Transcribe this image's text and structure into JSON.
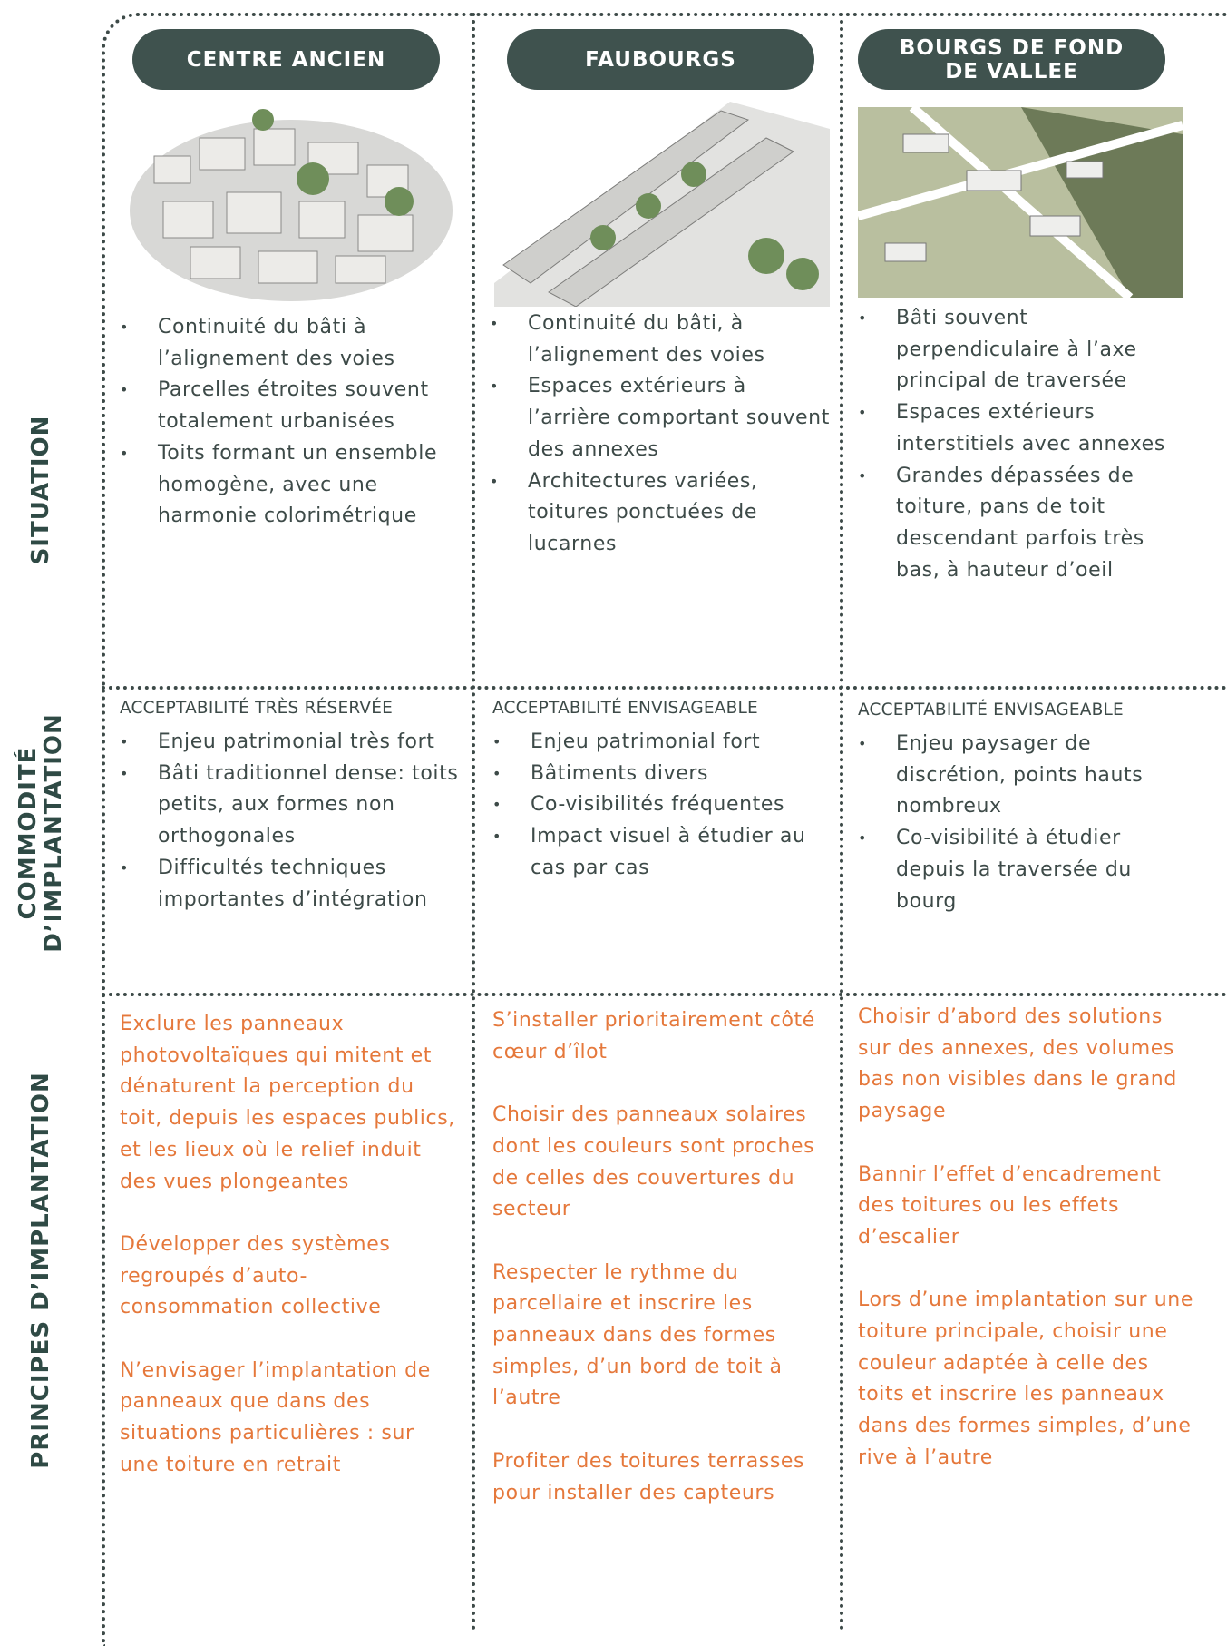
{
  "row_labels": [
    "SITUATION",
    "COMMODITÉ\nD’IMPLANTATION",
    "PRINCIPES D’IMPLANTATION"
  ],
  "columns": [
    {
      "title": "CENTRE ANCIEN",
      "situation": [
        "Continuité du bâti à l’alignement des voies",
        "Parcelles étroites souvent totalement urbanisées",
        "Toits formant un ensemble homogène, avec une harmonie colorimétrique"
      ],
      "commodite_heading": "ACCEPTABILITÉ TRÈS RÉSERVÉE",
      "commodite": [
        "Enjeu patrimonial très fort",
        "Bâti traditionnel dense: toits petits, aux formes non orthogonales",
        "Difficultés techniques importantes d’intégration"
      ],
      "principes": [
        "Exclure les panneaux photovoltaïques qui mitent et dénaturent la perception du toit, depuis les espaces publics, et les lieux où le relief induit des vues plongeantes",
        "Développer des systèmes regroupés d’auto-consommation collective",
        "N’envisager l’implantation de panneaux que dans des situations particulières : sur une toiture en retrait"
      ]
    },
    {
      "title": "FAUBOURGS",
      "situation": [
        "Continuité du bâti, à l’alignement des voies",
        "Espaces extérieurs à l’arrière comportant souvent des annexes",
        "Architectures variées, toitures ponctuées de lucarnes"
      ],
      "commodite_heading": "ACCEPTABILITÉ ENVISAGEABLE",
      "commodite": [
        "Enjeu patrimonial fort",
        "Bâtiments divers",
        "Co-visibilités fréquentes",
        "Impact visuel à étudier au cas par cas"
      ],
      "principes": [
        "S’installer prioritairement côté cœur d’îlot",
        "Choisir des panneaux solaires dont les couleurs sont proches de celles des couvertures du secteur",
        "Respecter le rythme du parcellaire et inscrire les panneaux dans des formes simples, d’un bord de toit à l’autre",
        "Profiter des toitures terrasses pour installer des capteurs"
      ]
    },
    {
      "title": "BOURGS DE FOND\nDE VALLEE",
      "situation": [
        "Bâti souvent perpendiculaire à l’axe principal de traversée",
        "Espaces extérieurs interstitiels avec annexes",
        "Grandes dépassées de toiture, pans de toit descendant parfois très bas, à hauteur d’oeil"
      ],
      "commodite_heading": "ACCEPTABILITÉ ENVISAGEABLE",
      "commodite": [
        "Enjeu paysager de discrétion, points hauts nombreux",
        "Co-visibilité à étudier depuis la traversée du bourg"
      ],
      "principes": [
        "Choisir d’abord des solutions sur des annexes, des volumes bas non visibles dans le grand paysage",
        "Bannir l’effet d’encadrement des toitures ou les effets d’escalier",
        "Lors d’une implantation sur une toiture principale, choisir une couleur adaptée à celle des toits et inscrire les panneaux dans des formes simples, d’une rive à l’autre"
      ]
    }
  ]
}
